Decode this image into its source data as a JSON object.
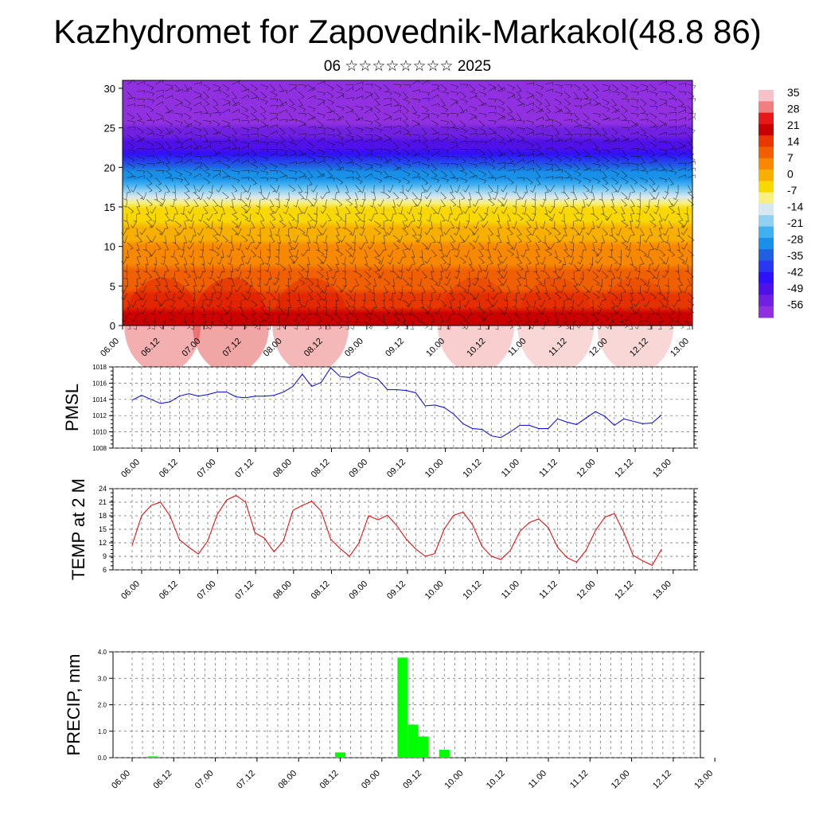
{
  "title": "Kazhydromet for Zapovednik-Markakol(48.8 86)",
  "subtitle": "06 ☆☆☆☆☆☆☆☆ 2025",
  "time_ticks": [
    "06.00",
    "06.12",
    "07.00",
    "07.12",
    "08.00",
    "08.12",
    "09.00",
    "09.12",
    "10.00",
    "10.12",
    "11.00",
    "11.12",
    "12.00",
    "12.12",
    "13.00"
  ],
  "chart_data": [
    {
      "type": "heatmap",
      "name": "temperature-height cross-section with wind barbs",
      "ylim": [
        0,
        31
      ],
      "y_ticks": [
        0,
        5,
        10,
        15,
        20,
        25,
        30
      ],
      "colorbar": {
        "labels": [
          "35",
          "28",
          "21",
          "14",
          "7",
          "0",
          "-7",
          "-14",
          "-21",
          "-28",
          "-35",
          "-42",
          "-49",
          "-56"
        ],
        "colors": [
          "#f8c0c8",
          "#f08080",
          "#e81818",
          "#c80000",
          "#e83800",
          "#f06000",
          "#f88800",
          "#f8b000",
          "#f8d800",
          "#f8f080",
          "#d8e8f0",
          "#90d0f0",
          "#40b0f0",
          "#1890e8",
          "#2060e0",
          "#2838f0",
          "#3010f8",
          "#5010e8",
          "#7020e0",
          "#9030e0"
        ]
      },
      "profile": {
        "heights": [
          0,
          3,
          6,
          9,
          12,
          15,
          17,
          19,
          21,
          22.5,
          24,
          27,
          31
        ],
        "temperature": [
          21,
          14,
          9,
          5,
          0,
          -8,
          -20,
          -30,
          -40,
          -48,
          -56,
          -58,
          -60
        ]
      }
    },
    {
      "type": "line",
      "ylabel": "PMSL",
      "ylim": [
        1008,
        1018
      ],
      "y_ticks": [
        "1008",
        "1010",
        "1012",
        "1014",
        "1016",
        "1018"
      ],
      "color": "#0000e0",
      "values": [
        1013.9,
        1014.5,
        1014.0,
        1013.5,
        1013.7,
        1014.4,
        1014.7,
        1014.4,
        1014.6,
        1014.9,
        1014.9,
        1014.3,
        1014.2,
        1014.4,
        1014.4,
        1014.5,
        1014.9,
        1015.6,
        1017.1,
        1015.6,
        1016.1,
        1017.9,
        1016.8,
        1016.7,
        1017.4,
        1016.8,
        1016.5,
        1015.2,
        1015.2,
        1015.1,
        1014.8,
        1013.2,
        1013.3,
        1013.0,
        1012.2,
        1011.0,
        1010.4,
        1010.3,
        1009.5,
        1009.3,
        1010.0,
        1010.8,
        1010.8,
        1010.4,
        1010.4,
        1011.6,
        1011.2,
        1010.9,
        1011.7,
        1012.5,
        1011.9,
        1010.8,
        1011.6,
        1011.3,
        1011.0,
        1011.1,
        1012.1
      ]
    },
    {
      "type": "line",
      "ylabel": "TEMP at 2 M",
      "ylim": [
        6,
        24
      ],
      "y_ticks": [
        "6",
        "9",
        "12",
        "15",
        "18",
        "21",
        "24"
      ],
      "color": "#e00000",
      "values": [
        11.5,
        18.0,
        20.3,
        21.0,
        18.0,
        12.7,
        11.0,
        9.5,
        12.4,
        18.3,
        21.5,
        22.5,
        21.0,
        14.2,
        13.0,
        10.0,
        12.4,
        19.2,
        20.3,
        21.2,
        19.0,
        12.8,
        10.7,
        9.0,
        12.0,
        18.0,
        17.1,
        18.1,
        15.8,
        12.8,
        10.6,
        9.0,
        9.6,
        15.0,
        18.1,
        18.8,
        16.0,
        11.2,
        9.0,
        8.3,
        10.3,
        14.5,
        16.5,
        17.3,
        15.4,
        11.0,
        8.7,
        7.7,
        10.3,
        14.7,
        17.7,
        18.5,
        14.3,
        9.2,
        8.0,
        7.0,
        10.6
      ]
    },
    {
      "type": "bar",
      "ylabel": "PRECIP, mm",
      "ylim": [
        0,
        4
      ],
      "y_ticks": [
        "0.0",
        "1.0",
        "2.0",
        "3.0",
        "4.0"
      ],
      "color": "#00ff00",
      "bars": [
        {
          "time": "06.06",
          "value": 0.05
        },
        {
          "time": "08.12",
          "value": 0.2
        },
        {
          "time": "09.06",
          "value": 3.78
        },
        {
          "time": "09.09",
          "value": 1.25
        },
        {
          "time": "09.12",
          "value": 0.8
        },
        {
          "time": "09.18",
          "value": 0.3
        }
      ]
    }
  ]
}
